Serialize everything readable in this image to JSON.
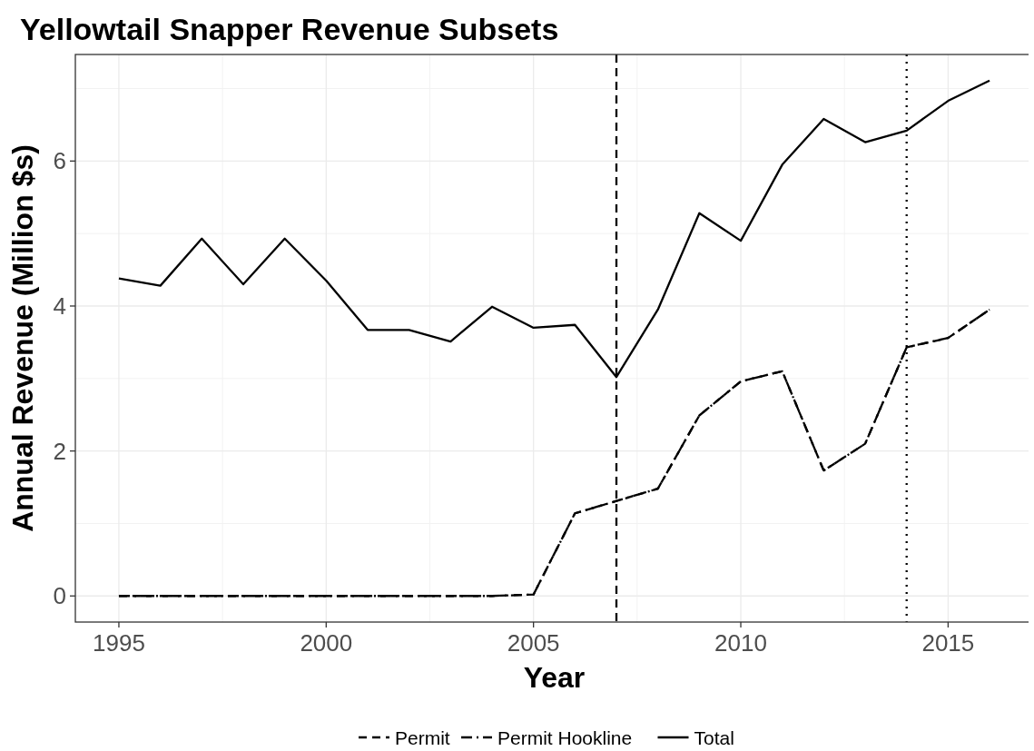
{
  "chart_data": {
    "type": "line",
    "title": "Yellowtail Snapper Revenue Subsets",
    "xlabel": "Year",
    "ylabel": "Annual Revenue (Million $s)",
    "x": [
      1995,
      1996,
      1997,
      1998,
      1999,
      2000,
      2001,
      2002,
      2003,
      2004,
      2005,
      2006,
      2007,
      2008,
      2009,
      2010,
      2011,
      2012,
      2013,
      2014,
      2015,
      2016
    ],
    "series": [
      {
        "name": "Permit",
        "color": "#000000",
        "line_style": "dashed",
        "values": [
          0,
          0,
          0,
          0,
          0,
          0,
          0,
          0,
          0,
          0,
          0.02,
          1.14,
          1.31,
          1.48,
          2.49,
          2.96,
          3.1,
          1.73,
          2.1,
          3.43,
          3.56,
          3.95
        ]
      },
      {
        "name": "Permit Hookline",
        "color": "#000000",
        "line_style": "dashdot",
        "values": [
          0,
          0,
          0,
          0,
          0,
          0,
          0,
          0,
          0,
          0,
          0.02,
          1.14,
          1.31,
          1.48,
          2.49,
          2.96,
          3.1,
          1.73,
          2.1,
          3.43,
          3.56,
          3.95
        ]
      },
      {
        "name": "Total",
        "color": "#000000",
        "line_style": "solid",
        "values": [
          4.38,
          4.28,
          4.93,
          4.3,
          4.93,
          4.35,
          3.67,
          3.67,
          3.51,
          3.99,
          3.7,
          3.74,
          3.02,
          3.95,
          5.28,
          4.9,
          5.95,
          6.58,
          6.26,
          6.42,
          6.83,
          7.11
        ]
      }
    ],
    "xlim": [
      1993.95,
      2017.05
    ],
    "xticks": [
      1995,
      2000,
      2005,
      2010,
      2015
    ],
    "ylim": [
      -0.36,
      7.47
    ],
    "yticks": [
      0,
      2,
      4,
      6
    ],
    "ref_lines": [
      {
        "axis": "x",
        "value": 2007,
        "line_style": "dashed",
        "color": "#000000"
      },
      {
        "axis": "x",
        "value": 2014,
        "line_style": "dotted",
        "color": "#000000"
      }
    ],
    "grid": true,
    "legend": "bottom"
  }
}
